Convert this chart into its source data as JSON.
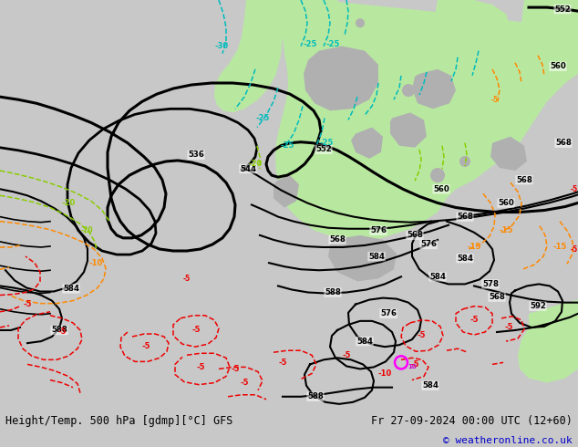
{
  "title_left": "Height/Temp. 500 hPa [gdmp][°C] GFS",
  "title_right": "Fr 27-09-2024 00:00 UTC (12+60)",
  "copyright": "© weatheronline.co.uk",
  "bg_color": "#c8c8c8",
  "map_bg": "#c8c8c8",
  "green_fill": "#b8e8a0",
  "green_fill_dark": "#90cc78",
  "bottom_bar_color": "#e8e8e8",
  "font_size_title": 8.5,
  "font_size_copyright": 8
}
